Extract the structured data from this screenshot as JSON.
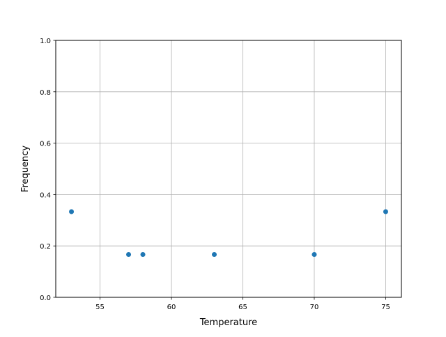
{
  "chart_data": {
    "type": "scatter",
    "xlabel": "Temperature",
    "ylabel": "Frequency",
    "xlim": [
      51.9,
      76.1
    ],
    "ylim": [
      0.0,
      1.0
    ],
    "xticks": [
      "55",
      "60",
      "65",
      "70",
      "75"
    ],
    "xtick_values": [
      55,
      60,
      65,
      70,
      75
    ],
    "yticks": [
      "0.0",
      "0.2",
      "0.4",
      "0.6",
      "0.8",
      "1.0"
    ],
    "ytick_values": [
      0.0,
      0.2,
      0.4,
      0.6,
      0.8,
      1.0
    ],
    "grid": true,
    "color": "#1f77b4",
    "points": [
      {
        "x": 53,
        "y": 0.3333
      },
      {
        "x": 57,
        "y": 0.1667
      },
      {
        "x": 58,
        "y": 0.1667
      },
      {
        "x": 63,
        "y": 0.1667
      },
      {
        "x": 70,
        "y": 0.1667
      },
      {
        "x": 75,
        "y": 0.3333
      }
    ]
  }
}
